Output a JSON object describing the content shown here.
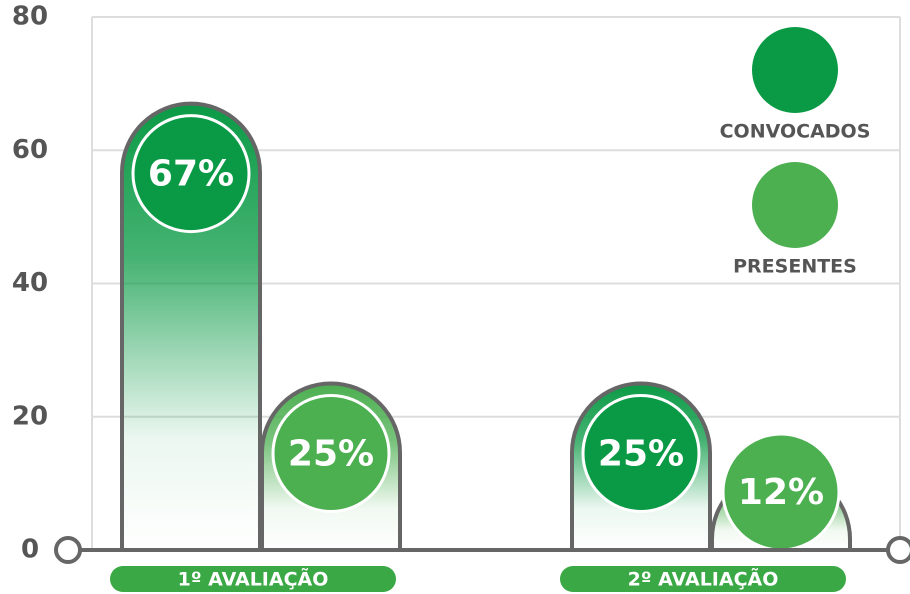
{
  "chart_data": {
    "type": "bar",
    "categories": [
      "1º AVALIAÇÃO",
      "2º AVALIAÇÃO"
    ],
    "series": [
      {
        "name": "CONVOCADOS",
        "color": "#0a9a45",
        "values": [
          67,
          25
        ],
        "value_labels": [
          "67%",
          "25%"
        ]
      },
      {
        "name": "PRESENTES",
        "color": "#4caf50",
        "values": [
          25,
          12
        ],
        "value_labels": [
          "25%",
          "12%"
        ]
      }
    ],
    "ylim": [
      0,
      80
    ],
    "yticks": [
      0,
      20,
      40,
      60,
      80
    ],
    "grid": true,
    "legend": "upper right"
  }
}
